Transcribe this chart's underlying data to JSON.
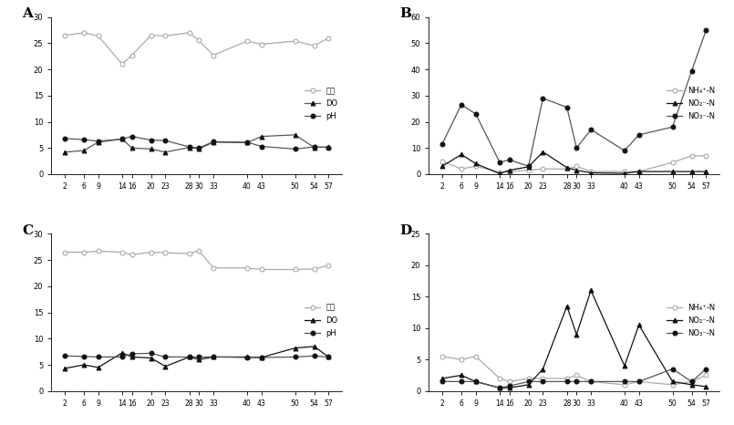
{
  "x": [
    2,
    6,
    9,
    14,
    16,
    20,
    23,
    28,
    30,
    33,
    40,
    43,
    50,
    54,
    57
  ],
  "A": {
    "temp": [
      26.5,
      27.0,
      26.4,
      21.0,
      22.7,
      26.5,
      26.4,
      27.0,
      25.5,
      22.7,
      25.4,
      24.8,
      25.4,
      24.5,
      26.0
    ],
    "DO": [
      4.2,
      4.5,
      6.1,
      6.7,
      5.0,
      4.8,
      4.2,
      5.1,
      4.8,
      6.1,
      6.0,
      7.2,
      7.5,
      5.1,
      5.2
    ],
    "pH": [
      6.8,
      6.6,
      6.3,
      6.7,
      7.2,
      6.5,
      6.4,
      5.2,
      5.0,
      6.2,
      6.1,
      5.3,
      4.8,
      5.2,
      5.1
    ]
  },
  "B": {
    "NH4": [
      5.0,
      2.0,
      3.0,
      0.8,
      1.0,
      1.5,
      2.0,
      2.0,
      3.0,
      1.0,
      1.0,
      1.0,
      4.5,
      7.0,
      7.0
    ],
    "NO2": [
      3.0,
      7.5,
      4.0,
      0.2,
      1.5,
      2.8,
      8.5,
      2.5,
      1.5,
      0.5,
      0.3,
      1.0,
      1.0,
      1.0,
      1.0
    ],
    "NO3": [
      11.5,
      26.5,
      23.0,
      4.5,
      5.5,
      3.0,
      29.0,
      25.5,
      10.0,
      17.0,
      9.0,
      15.0,
      18.0,
      39.5,
      55.0
    ]
  },
  "C": {
    "temp": [
      26.5,
      26.5,
      26.7,
      26.5,
      26.0,
      26.5,
      26.4,
      26.2,
      26.8,
      23.5,
      23.5,
      23.2,
      23.2,
      23.3,
      24.0
    ],
    "DO": [
      4.3,
      5.0,
      4.5,
      7.3,
      6.5,
      6.3,
      4.7,
      6.5,
      6.0,
      6.5,
      6.5,
      6.4,
      8.2,
      8.5,
      6.5
    ],
    "pH": [
      6.7,
      6.6,
      6.5,
      6.5,
      7.1,
      7.2,
      6.5,
      6.5,
      6.5,
      6.5,
      6.4,
      6.4,
      6.5,
      6.7,
      6.5
    ]
  },
  "D": {
    "NH4": [
      5.5,
      5.0,
      5.5,
      2.0,
      1.5,
      2.0,
      2.0,
      2.0,
      2.5,
      1.5,
      1.0,
      1.5,
      1.0,
      1.5,
      2.5
    ],
    "NO2": [
      2.0,
      2.5,
      1.5,
      0.5,
      0.5,
      1.0,
      3.5,
      13.5,
      9.0,
      16.0,
      4.0,
      10.5,
      1.5,
      1.0,
      0.7
    ],
    "NO3": [
      1.5,
      1.5,
      1.5,
      0.5,
      0.8,
      1.5,
      1.5,
      1.5,
      1.5,
      1.5,
      1.5,
      1.5,
      3.5,
      1.5,
      3.5
    ]
  },
  "color_light_gray": "#aaaaaa",
  "color_dark": "#111111",
  "color_mid": "#555555",
  "panel_labels": [
    "A",
    "B",
    "C",
    "D"
  ]
}
